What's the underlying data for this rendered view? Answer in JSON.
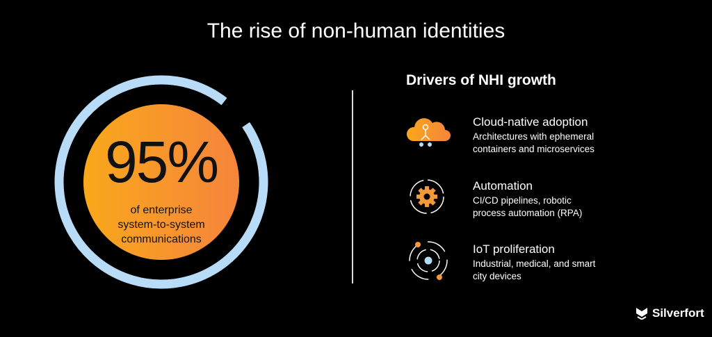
{
  "title": "The rise of non-human identities",
  "stat": {
    "value": "95%",
    "fraction": 0.95,
    "caption_lines": [
      "of enterprise",
      "system-to-system",
      "communications"
    ]
  },
  "drivers": {
    "heading": "Drivers of NHI growth",
    "items": [
      {
        "icon": "cloud-network-icon",
        "title": "Cloud-native adoption",
        "desc_lines": [
          "Architectures with ephemeral",
          "containers and microservices"
        ]
      },
      {
        "icon": "gear-cycle-icon",
        "title": "Automation",
        "desc_lines": [
          "CI/CD pipelines, robotic",
          "process automation (RPA)"
        ]
      },
      {
        "icon": "orbit-icon",
        "title": "IoT proliferation",
        "desc_lines": [
          "Industrial, medical, and smart",
          "city devices"
        ]
      }
    ]
  },
  "brand": "Silverfort",
  "colors": {
    "ring": "#b8dcf7",
    "orange_start": "#f9a81b",
    "orange_end": "#f5843c"
  }
}
